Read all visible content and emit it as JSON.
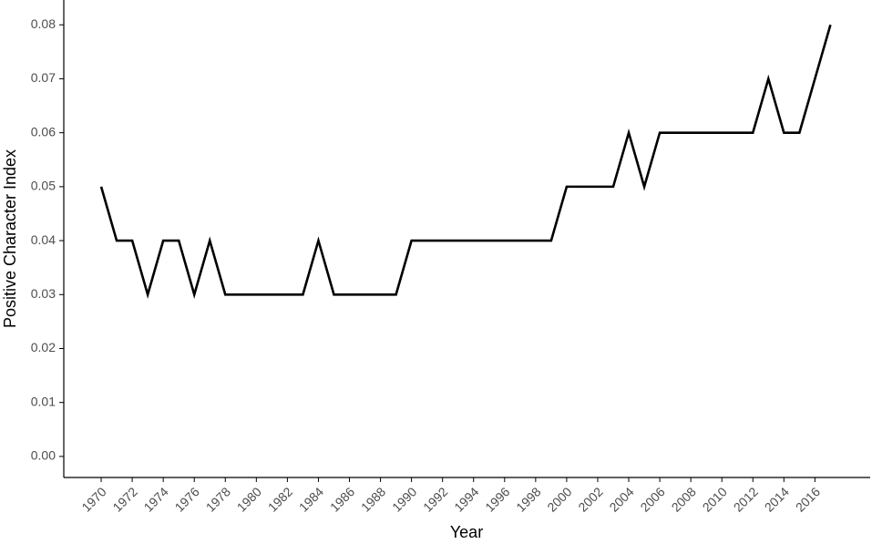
{
  "chart_data": {
    "type": "line",
    "xlabel": "Year",
    "ylabel": "Positive Character Index",
    "x": [
      1970,
      1971,
      1972,
      1973,
      1974,
      1975,
      1976,
      1977,
      1978,
      1979,
      1980,
      1981,
      1982,
      1983,
      1984,
      1985,
      1986,
      1987,
      1988,
      1989,
      1990,
      1991,
      1992,
      1993,
      1994,
      1995,
      1996,
      1997,
      1998,
      1999,
      2000,
      2001,
      2002,
      2003,
      2004,
      2005,
      2006,
      2007,
      2008,
      2009,
      2010,
      2011,
      2012,
      2013,
      2014,
      2015,
      2016,
      2017
    ],
    "values": [
      0.05,
      0.04,
      0.04,
      0.03,
      0.04,
      0.04,
      0.03,
      0.04,
      0.03,
      0.03,
      0.03,
      0.03,
      0.03,
      0.03,
      0.04,
      0.03,
      0.03,
      0.03,
      0.03,
      0.03,
      0.04,
      0.04,
      0.04,
      0.04,
      0.04,
      0.04,
      0.04,
      0.04,
      0.04,
      0.04,
      0.05,
      0.05,
      0.05,
      0.05,
      0.06,
      0.05,
      0.06,
      0.06,
      0.06,
      0.06,
      0.06,
      0.06,
      0.06,
      0.07,
      0.06,
      0.06,
      0.07,
      0.08
    ],
    "color": "#000000",
    "xlim": [
      1967.59,
      2019.56
    ],
    "ylim": [
      -0.0039,
      0.0846
    ],
    "xticks": [
      1970,
      1972,
      1974,
      1976,
      1978,
      1980,
      1982,
      1984,
      1986,
      1988,
      1990,
      1992,
      1994,
      1996,
      1998,
      2000,
      2002,
      2004,
      2006,
      2008,
      2010,
      2012,
      2014,
      2016
    ],
    "yticks": [
      {
        "value": 0,
        "label": "0.00"
      },
      {
        "value": 0.01,
        "label": "0.01"
      },
      {
        "value": 0.02,
        "label": "0.02"
      },
      {
        "value": 0.03,
        "label": "0.03"
      },
      {
        "value": 0.04,
        "label": "0.04"
      },
      {
        "value": 0.05,
        "label": "0.05"
      },
      {
        "value": 0.06,
        "label": "0.06"
      },
      {
        "value": 0.07,
        "label": "0.07"
      },
      {
        "value": 0.08,
        "label": "0.08"
      }
    ]
  }
}
